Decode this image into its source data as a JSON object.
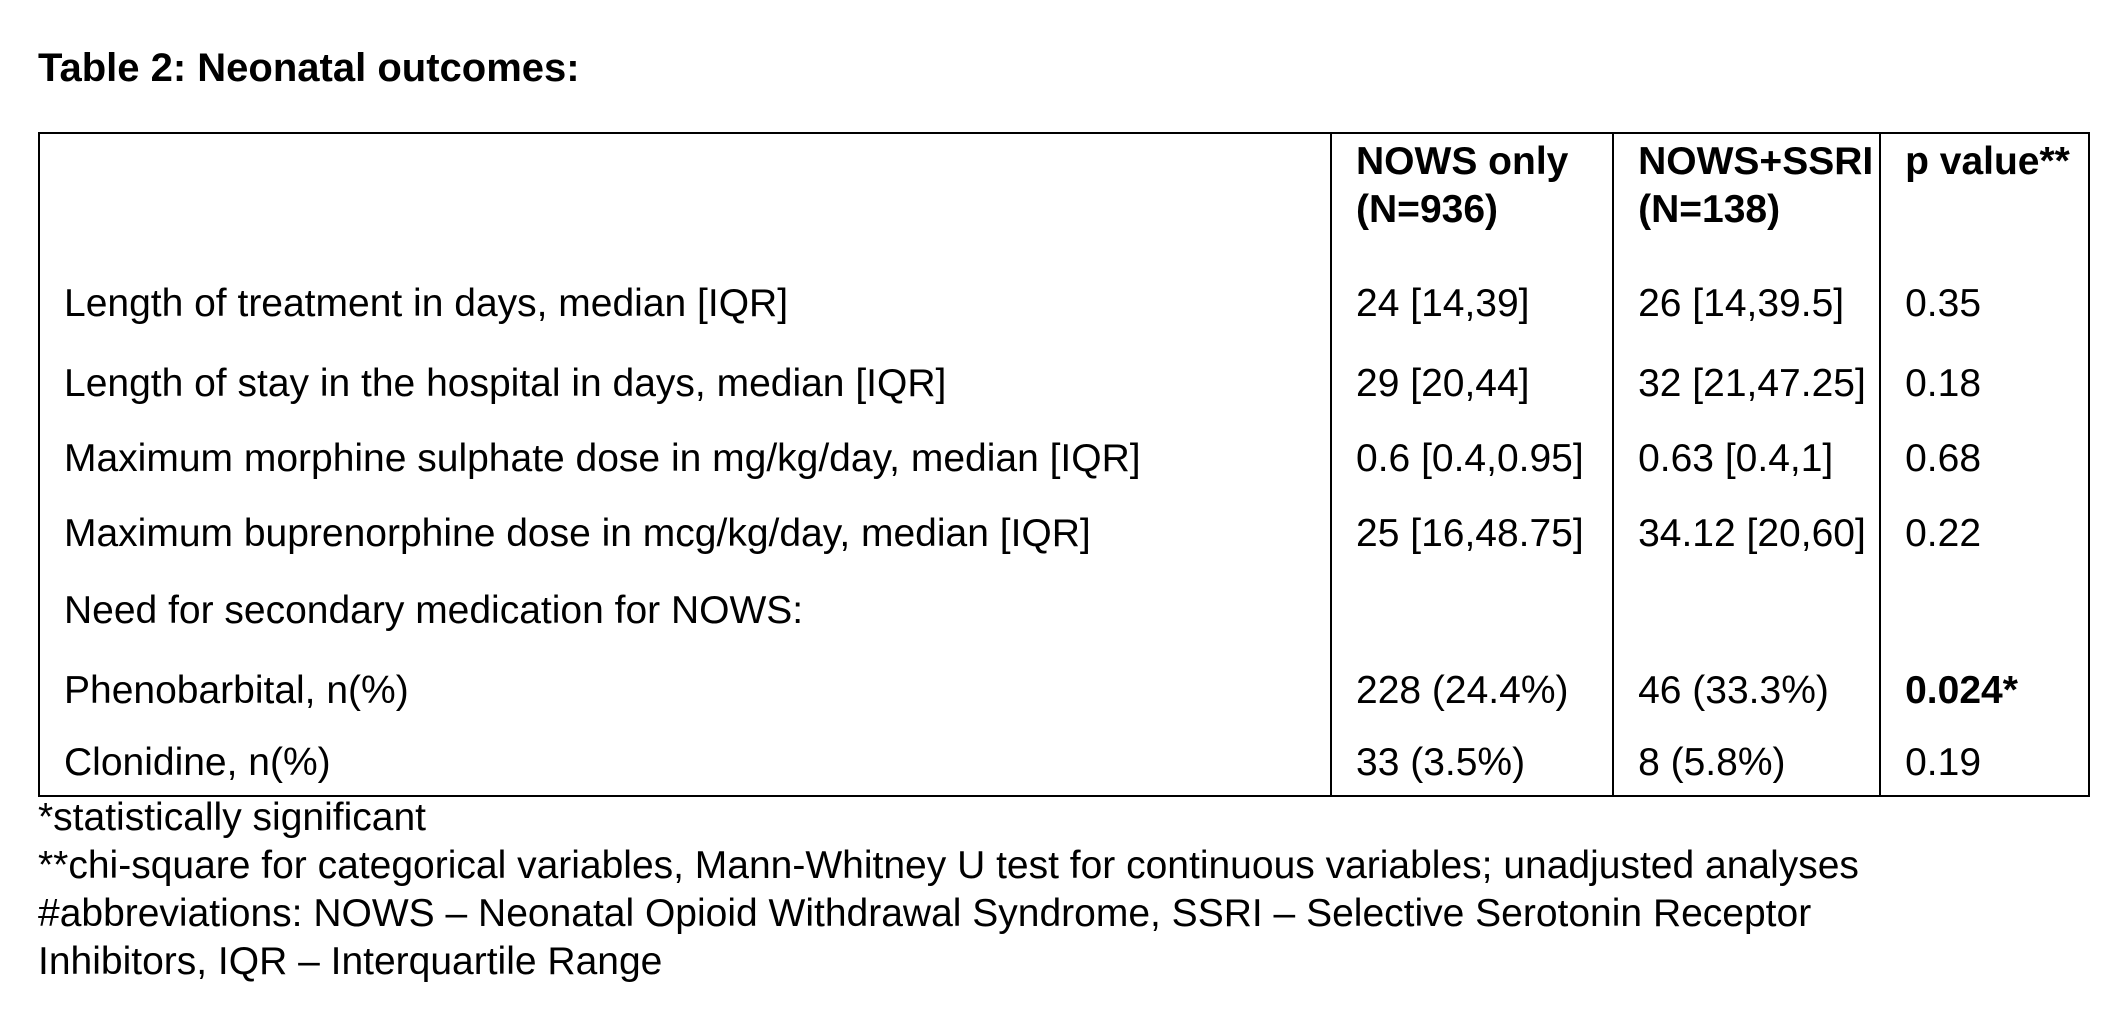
{
  "title": "Table 2: Neonatal outcomes:",
  "table": {
    "headers": {
      "label": "",
      "col_a": [
        "NOWS only",
        "(N=936)"
      ],
      "col_b": [
        "NOWS+SSRI",
        "(N=138)"
      ],
      "col_p": "p value**"
    },
    "rows": [
      {
        "label": "Length of treatment in days, median [IQR]",
        "a": "24 [14,39]",
        "b": "26 [14,39.5]",
        "p": "0.35"
      },
      {
        "label": "Length of stay in the hospital in days, median [IQR]",
        "a": "29 [20,44]",
        "b": "32 [21,47.25]",
        "p": "0.18"
      },
      {
        "label": "Maximum morphine sulphate dose in mg/kg/day, median [IQR]",
        "a": "0.6 [0.4,0.95]",
        "b": "0.63 [0.4,1]",
        "p": "0.68"
      },
      {
        "label": "Maximum buprenorphine dose in mcg/kg/day, median [IQR]",
        "a": "25 [16,48.75]",
        "b": "34.12 [20,60]",
        "p": "0.22"
      },
      {
        "label": "Need for secondary medication for NOWS:",
        "a": "",
        "b": "",
        "p": ""
      },
      {
        "label": "Phenobarbital, n(%)",
        "a": "228 (24.4%)",
        "b": "46 (33.3%)",
        "p": "0.024*"
      },
      {
        "label": "Clonidine, n(%)",
        "a": "33 (3.5%)",
        "b": "8 (5.8%)",
        "p": "0.19"
      }
    ]
  },
  "footnotes": {
    "line1": "*statistically significant",
    "line2": "**chi-square for categorical variables, Mann-Whitney U test for continuous variables; unadjusted analyses",
    "line3": "#abbreviations: NOWS – Neonatal Opioid Withdrawal Syndrome, SSRI – Selective Serotonin Receptor",
    "line4": "Inhibitors, IQR – Interquartile Range"
  }
}
